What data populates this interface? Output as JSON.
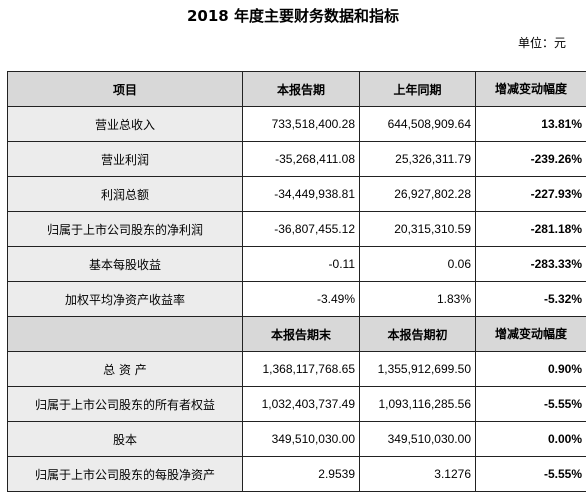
{
  "title": "2018 年度主要财务数据和指标",
  "unit": "单位：元",
  "table1": {
    "headers": [
      "项目",
      "本报告期",
      "上年同期",
      "增减变动幅度"
    ],
    "rows": [
      {
        "label": "营业总收入",
        "current": "733,518,400.28",
        "previous": "644,508,909.64",
        "change": "13.81%"
      },
      {
        "label": "营业利润",
        "current": "-35,268,411.08",
        "previous": "25,326,311.79",
        "change": "-239.26%"
      },
      {
        "label": "利润总额",
        "current": "-34,449,938.81",
        "previous": "26,927,802.28",
        "change": "-227.93%"
      },
      {
        "label": "归属于上市公司股东的净利润",
        "current": "-36,807,455.12",
        "previous": "20,315,310.59",
        "change": "-281.18%"
      },
      {
        "label": "基本每股收益",
        "current": "-0.11",
        "previous": "0.06",
        "change": "-283.33%"
      },
      {
        "label": "加权平均净资产收益率",
        "current": "-3.49%",
        "previous": "1.83%",
        "change": "-5.32%"
      }
    ]
  },
  "table2": {
    "headers": [
      "",
      "本报告期末",
      "本报告期初",
      "增减变动幅度"
    ],
    "rows": [
      {
        "label": "总 资 产",
        "current": "1,368,117,768.65",
        "previous": "1,355,912,699.50",
        "change": "0.90%"
      },
      {
        "label": "归属于上市公司股东的所有者权益",
        "current": "1,032,403,737.49",
        "previous": "1,093,116,285.56",
        "change": "-5.55%"
      },
      {
        "label": "股本",
        "current": "349,510,030.00",
        "previous": "349,510,030.00",
        "change": "0.00%"
      },
      {
        "label": "归属于上市公司股东的每股净资产",
        "current": "2.9539",
        "previous": "3.1276",
        "change": "-5.55%"
      }
    ]
  }
}
